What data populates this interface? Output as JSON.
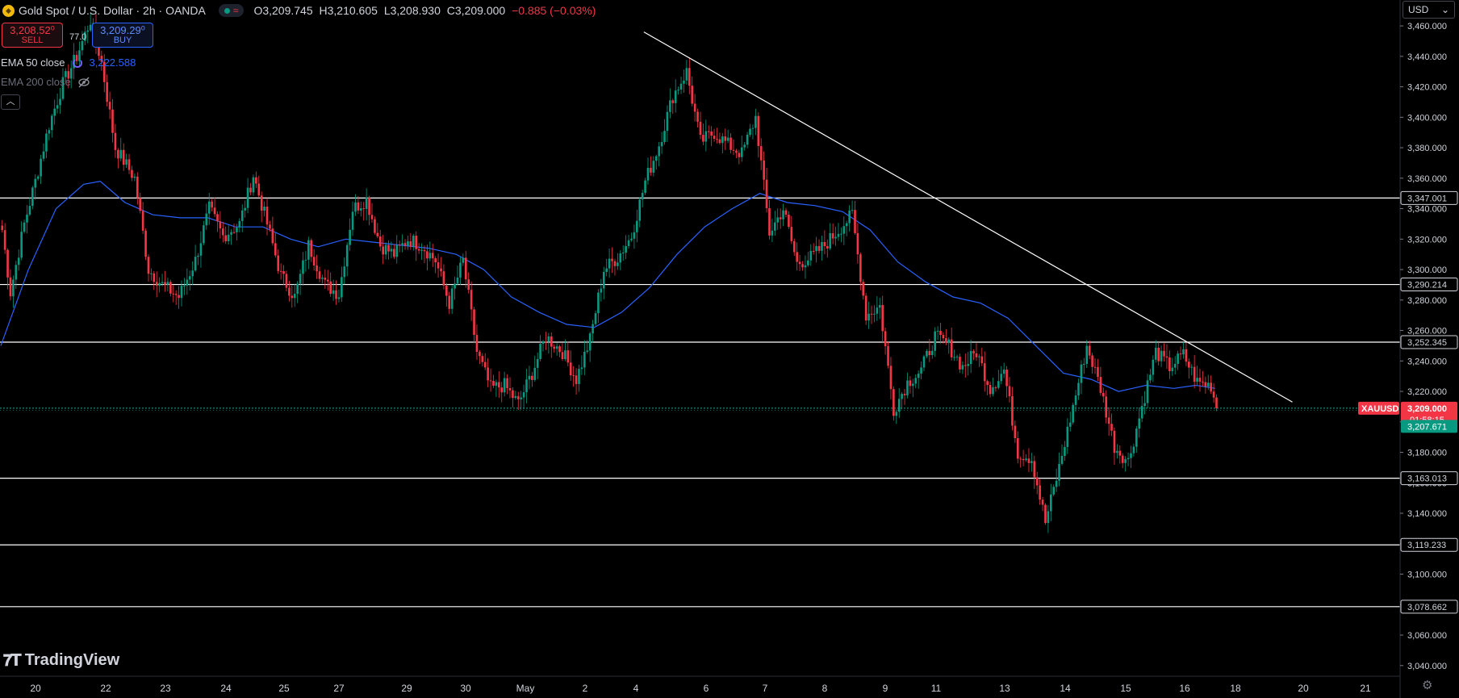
{
  "header": {
    "title": "Gold Spot / U.S. Dollar · 2h · OANDA",
    "ohlc": {
      "o": "O3,209.745",
      "h": "H3,210.605",
      "l": "L3,208.930",
      "c": "C3,209.000",
      "chg": "−0.885 (−0.03%)"
    }
  },
  "trade": {
    "sell_price": "3,208.52⁰",
    "sell_label": "SELL",
    "spread": "77.0",
    "buy_price": "3,209.29⁰",
    "buy_label": "BUY"
  },
  "indicators": {
    "ema50_label": "EMA 50 close",
    "ema50_value": "3,222.588",
    "ema200_label": "EMA 200 close"
  },
  "currency": "USD",
  "branding": "TradingView",
  "colors": {
    "up": "#089981",
    "down": "#f23645",
    "ema": "#2962ff",
    "level": "#ffffff",
    "bg": "#000000"
  },
  "chart_data": {
    "type": "candlestick",
    "symbol": "XAUUSD",
    "timeframe": "2h",
    "y_ticks": [
      3040,
      3060,
      3080,
      3100,
      3120,
      3140,
      3160,
      3180,
      3200,
      3220,
      3240,
      3260,
      3280,
      3300,
      3320,
      3340,
      3360,
      3380,
      3400,
      3420,
      3440,
      3460
    ],
    "y_tick_labels": [
      "3,040.000",
      "3,060.000",
      "3,080.000",
      "3,100.000",
      "3,120.000",
      "3,140.000",
      "3,160.000",
      "3,180.000",
      "3,200.000",
      "3,220.000",
      "3,240.000",
      "3,260.000",
      "3,280.000",
      "3,300.000",
      "3,320.000",
      "3,340.000",
      "3,360.000",
      "3,380.000",
      "3,400.000",
      "3,420.000",
      "3,440.000",
      "3,460.000"
    ],
    "ylim": [
      3033,
      3477
    ],
    "x_labels": [
      "20",
      "22",
      "23",
      "24",
      "25",
      "27",
      "29",
      "30",
      "May",
      "2",
      "4",
      "6",
      "7",
      "8",
      "9",
      "11",
      "13",
      "14",
      "15",
      "16",
      "18",
      "20",
      "21"
    ],
    "levels": [
      {
        "value": 3347.001,
        "label": "3,347.001"
      },
      {
        "value": 3290.214,
        "label": "3,290.214"
      },
      {
        "value": 3252.345,
        "label": "3,252.345"
      },
      {
        "value": 3163.013,
        "label": "3,163.013"
      },
      {
        "value": 3119.233,
        "label": "3,119.233"
      },
      {
        "value": 3078.662,
        "label": "3,078.662"
      }
    ],
    "current_price": {
      "value": 3209.0,
      "label": "3,209.000",
      "countdown": "01:58:15",
      "symbol": "XAUUSD"
    },
    "bid_price": {
      "value": 3207.671,
      "label": "3,207.671"
    },
    "trendline": {
      "from": [
        233,
        3456
      ],
      "to": [
        468,
        3213
      ]
    },
    "anchors": [
      [
        0,
        3326
      ],
      [
        3,
        3285
      ],
      [
        8,
        3330
      ],
      [
        12,
        3358
      ],
      [
        17,
        3395
      ],
      [
        22,
        3422
      ],
      [
        27,
        3440
      ],
      [
        32,
        3464
      ],
      [
        36,
        3436
      ],
      [
        41,
        3380
      ],
      [
        48,
        3360
      ],
      [
        53,
        3300
      ],
      [
        58,
        3290
      ],
      [
        64,
        3282
      ],
      [
        70,
        3306
      ],
      [
        75,
        3340
      ],
      [
        80,
        3322
      ],
      [
        86,
        3330
      ],
      [
        91,
        3362
      ],
      [
        96,
        3330
      ],
      [
        101,
        3296
      ],
      [
        106,
        3282
      ],
      [
        111,
        3316
      ],
      [
        117,
        3290
      ],
      [
        122,
        3284
      ],
      [
        127,
        3340
      ],
      [
        132,
        3346
      ],
      [
        137,
        3316
      ],
      [
        142,
        3310
      ],
      [
        147,
        3320
      ],
      [
        152,
        3316
      ],
      [
        157,
        3306
      ],
      [
        162,
        3278
      ],
      [
        167,
        3306
      ],
      [
        172,
        3246
      ],
      [
        177,
        3222
      ],
      [
        182,
        3224
      ],
      [
        187,
        3212
      ],
      [
        192,
        3232
      ],
      [
        197,
        3256
      ],
      [
        203,
        3246
      ],
      [
        208,
        3228
      ],
      [
        213,
        3254
      ],
      [
        218,
        3300
      ],
      [
        223,
        3308
      ],
      [
        228,
        3322
      ],
      [
        233,
        3358
      ],
      [
        238,
        3382
      ],
      [
        243,
        3414
      ],
      [
        248,
        3430
      ],
      [
        253,
        3384
      ],
      [
        258,
        3390
      ],
      [
        263,
        3382
      ],
      [
        268,
        3376
      ],
      [
        273,
        3400
      ],
      [
        278,
        3324
      ],
      [
        283,
        3340
      ],
      [
        288,
        3304
      ],
      [
        293,
        3308
      ],
      [
        298,
        3316
      ],
      [
        303,
        3326
      ],
      [
        308,
        3336
      ],
      [
        313,
        3270
      ],
      [
        318,
        3276
      ],
      [
        323,
        3208
      ],
      [
        328,
        3226
      ],
      [
        333,
        3234
      ],
      [
        338,
        3256
      ],
      [
        343,
        3250
      ],
      [
        348,
        3236
      ],
      [
        353,
        3246
      ],
      [
        358,
        3222
      ],
      [
        363,
        3234
      ],
      [
        368,
        3180
      ],
      [
        373,
        3176
      ],
      [
        378,
        3134
      ],
      [
        383,
        3170
      ],
      [
        388,
        3210
      ],
      [
        393,
        3250
      ],
      [
        398,
        3222
      ],
      [
        403,
        3184
      ],
      [
        408,
        3174
      ],
      [
        413,
        3210
      ],
      [
        418,
        3246
      ],
      [
        423,
        3236
      ],
      [
        428,
        3244
      ],
      [
        433,
        3226
      ],
      [
        438,
        3224
      ],
      [
        440,
        3209
      ]
    ],
    "ema50": [
      [
        0,
        3250
      ],
      [
        10,
        3300
      ],
      [
        20,
        3340
      ],
      [
        30,
        3356
      ],
      [
        36,
        3358
      ],
      [
        45,
        3344
      ],
      [
        55,
        3336
      ],
      [
        65,
        3334
      ],
      [
        75,
        3334
      ],
      [
        85,
        3328
      ],
      [
        95,
        3328
      ],
      [
        105,
        3320
      ],
      [
        115,
        3315
      ],
      [
        125,
        3320
      ],
      [
        135,
        3318
      ],
      [
        145,
        3316
      ],
      [
        155,
        3314
      ],
      [
        165,
        3310
      ],
      [
        175,
        3300
      ],
      [
        185,
        3282
      ],
      [
        195,
        3272
      ],
      [
        205,
        3264
      ],
      [
        215,
        3262
      ],
      [
        225,
        3272
      ],
      [
        235,
        3288
      ],
      [
        245,
        3310
      ],
      [
        255,
        3328
      ],
      [
        265,
        3340
      ],
      [
        275,
        3350
      ],
      [
        285,
        3344
      ],
      [
        295,
        3342
      ],
      [
        305,
        3338
      ],
      [
        315,
        3326
      ],
      [
        325,
        3305
      ],
      [
        335,
        3292
      ],
      [
        345,
        3282
      ],
      [
        355,
        3278
      ],
      [
        365,
        3268
      ],
      [
        375,
        3250
      ],
      [
        385,
        3232
      ],
      [
        395,
        3228
      ],
      [
        405,
        3220
      ],
      [
        415,
        3224
      ],
      [
        425,
        3222
      ],
      [
        433,
        3224
      ],
      [
        440,
        3222
      ]
    ]
  }
}
